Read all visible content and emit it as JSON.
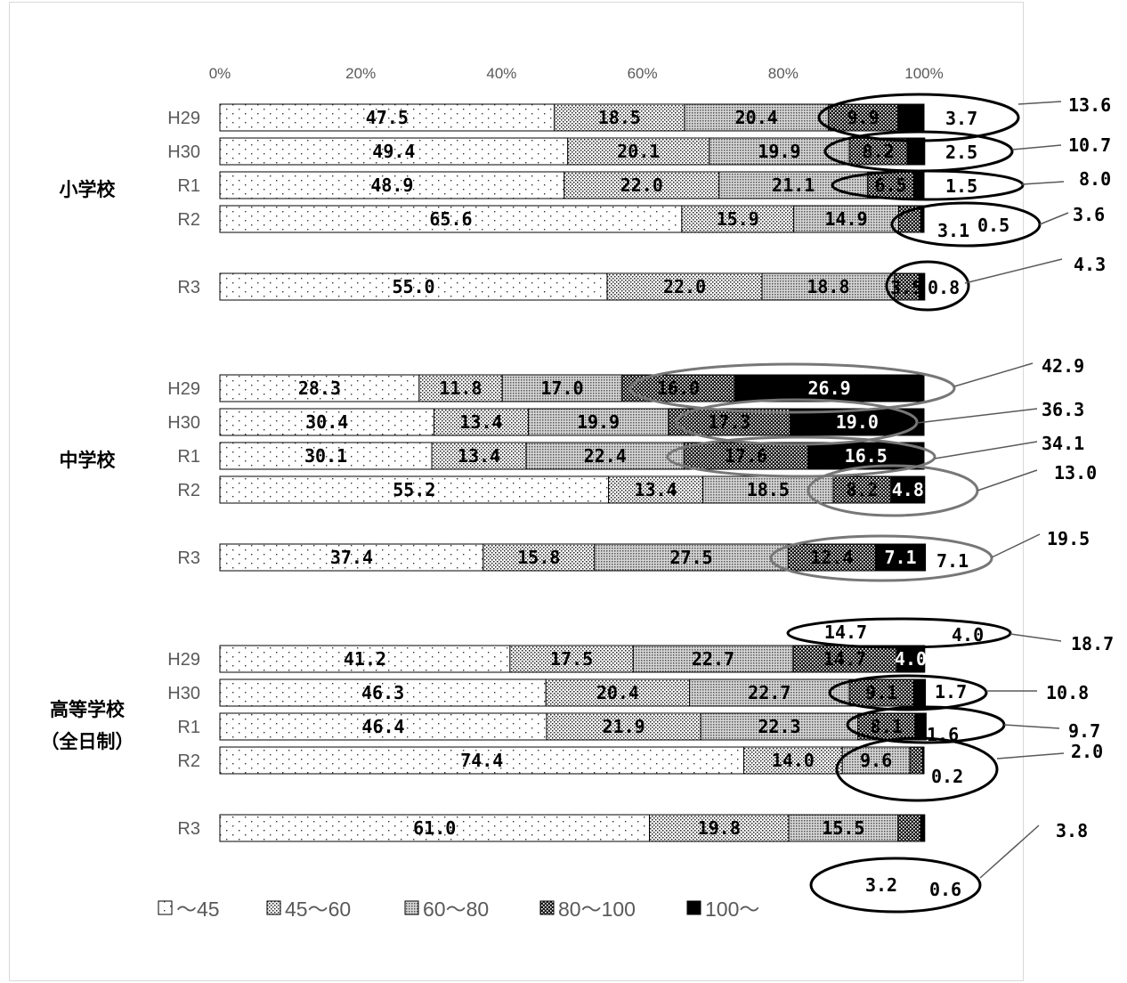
{
  "chart_data": {
    "type": "bar",
    "orientation": "horizontal",
    "stacked": "percent",
    "x_ticks": [
      "0%",
      "20%",
      "40%",
      "60%",
      "80%",
      "100%"
    ],
    "xlim": [
      0,
      100
    ],
    "legend": [
      "～45",
      "45～60",
      "60～80",
      "80～100",
      "100～"
    ],
    "legend_position": "bottom",
    "groups": [
      {
        "name": "小学校",
        "rows": [
          {
            "label": "H29",
            "values": [
              47.5,
              18.5,
              20.4,
              9.9,
              3.7
            ],
            "labels": [
              "47.5",
              "18.5",
              "20.4",
              "9.9",
              "3.7"
            ],
            "highlight_total": "13.6"
          },
          {
            "label": "H30",
            "values": [
              49.4,
              20.1,
              19.9,
              8.2,
              2.5
            ],
            "labels": [
              "49.4",
              "20.1",
              "19.9",
              "8.2",
              "2.5"
            ],
            "highlight_total": "10.7"
          },
          {
            "label": "R1",
            "values": [
              48.9,
              22.0,
              21.1,
              6.5,
              1.5
            ],
            "labels": [
              "48.9",
              "22.0",
              "21.1",
              "6.5",
              "1.5"
            ],
            "highlight_total": "8.0"
          },
          {
            "label": "R2",
            "values": [
              65.6,
              15.9,
              14.9,
              3.1,
              0.5
            ],
            "labels": [
              "65.6",
              "15.9",
              "14.9",
              "3.1",
              "0.5"
            ],
            "highlight_total": "3.6"
          },
          {
            "label": "R3",
            "values": [
              55.0,
              22.0,
              18.8,
              3.5,
              0.8
            ],
            "labels": [
              "55.0",
              "22.0",
              "18.8",
              "3.5",
              "0.8"
            ],
            "highlight_total": "4.3"
          }
        ]
      },
      {
        "name": "中学校",
        "rows": [
          {
            "label": "H29",
            "values": [
              28.3,
              11.8,
              17.0,
              16.0,
              26.9
            ],
            "labels": [
              "28.3",
              "11.8",
              "17.0",
              "16.0",
              "26.9"
            ],
            "highlight_total": "42.9"
          },
          {
            "label": "H30",
            "values": [
              30.4,
              13.4,
              19.9,
              17.3,
              19.0
            ],
            "labels": [
              "30.4",
              "13.4",
              "19.9",
              "17.3",
              "19.0"
            ],
            "highlight_total": "36.3"
          },
          {
            "label": "R1",
            "values": [
              30.1,
              13.4,
              22.4,
              17.6,
              16.5
            ],
            "labels": [
              "30.1",
              "13.4",
              "22.4",
              "17.6",
              "16.5"
            ],
            "highlight_total": "34.1"
          },
          {
            "label": "R2",
            "values": [
              55.2,
              13.4,
              18.5,
              8.2,
              4.8
            ],
            "labels": [
              "55.2",
              "13.4",
              "18.5",
              "8.2",
              "4.8"
            ],
            "highlight_total": "13.0"
          },
          {
            "label": "R3",
            "values": [
              37.4,
              15.8,
              27.5,
              12.4,
              7.1
            ],
            "labels": [
              "37.4",
              "15.8",
              "27.5",
              "12.4",
              "7.1"
            ],
            "highlight_total": "19.5"
          }
        ]
      },
      {
        "name": "高等学校\n（全日制）",
        "rows": [
          {
            "label": "H29",
            "values": [
              41.2,
              17.5,
              22.7,
              14.7,
              4.0
            ],
            "labels": [
              "41.2",
              "17.5",
              "22.7",
              "14.7",
              "4.0"
            ],
            "highlight_total": "18.7"
          },
          {
            "label": "H30",
            "values": [
              46.3,
              20.4,
              22.7,
              9.1,
              1.7
            ],
            "labels": [
              "46.3",
              "20.4",
              "22.7",
              "9.1",
              "1.7"
            ],
            "highlight_total": "10.8"
          },
          {
            "label": "R1",
            "values": [
              46.4,
              21.9,
              22.3,
              8.1,
              1.6
            ],
            "labels": [
              "46.4",
              "21.9",
              "22.3",
              "8.1",
              "1.6"
            ],
            "highlight_total": "9.7"
          },
          {
            "label": "R2",
            "values": [
              74.4,
              14.0,
              9.6,
              1.8,
              0.2
            ],
            "labels": [
              "74.4",
              "14.0",
              "9.6",
              "",
              "0.2"
            ],
            "highlight_total": "2.0"
          },
          {
            "label": "R3",
            "values": [
              61.0,
              19.8,
              15.5,
              3.2,
              0.6
            ],
            "labels": [
              "61.0",
              "19.8",
              "15.5",
              "3.2",
              "0.6"
            ],
            "highlight_total": "3.8"
          }
        ]
      }
    ]
  }
}
